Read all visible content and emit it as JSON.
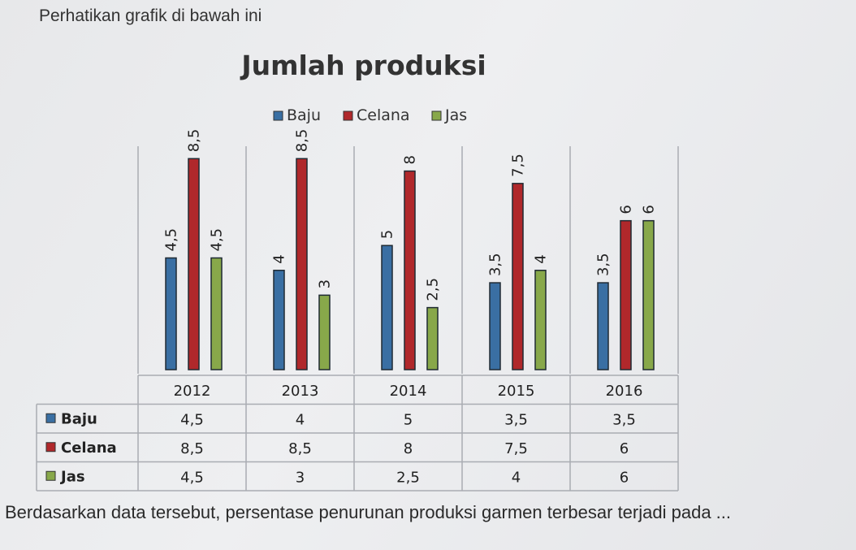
{
  "question": "Perhatikan grafik di bawah ini",
  "answer_prompt": "Berdasarkan data tersebut, persentase penurunan produksi garmen terbesar terjadi pada ...",
  "chart_data": {
    "type": "bar",
    "title": "Jumlah produksi",
    "categories": [
      "2012",
      "2013",
      "2014",
      "2015",
      "2016"
    ],
    "series": [
      {
        "name": "Baju",
        "values": [
          4.5,
          4,
          5,
          3.5,
          3.5
        ],
        "labels": [
          "4,5",
          "4",
          "5",
          "3,5",
          "3,5"
        ],
        "color": "#3a6fa3"
      },
      {
        "name": "Celana",
        "values": [
          8.5,
          8.5,
          8,
          7.5,
          6
        ],
        "labels": [
          "8,5",
          "8,5",
          "8",
          "7,5",
          "6"
        ],
        "color": "#b0282b"
      },
      {
        "name": "Jas",
        "values": [
          4.5,
          3,
          2.5,
          4,
          6
        ],
        "labels": [
          "4,5",
          "3",
          "2,5",
          "4",
          "6"
        ],
        "color": "#88a84a"
      }
    ],
    "ylim": [
      0,
      9
    ],
    "legend": "top",
    "data_table": true,
    "grid": true
  }
}
